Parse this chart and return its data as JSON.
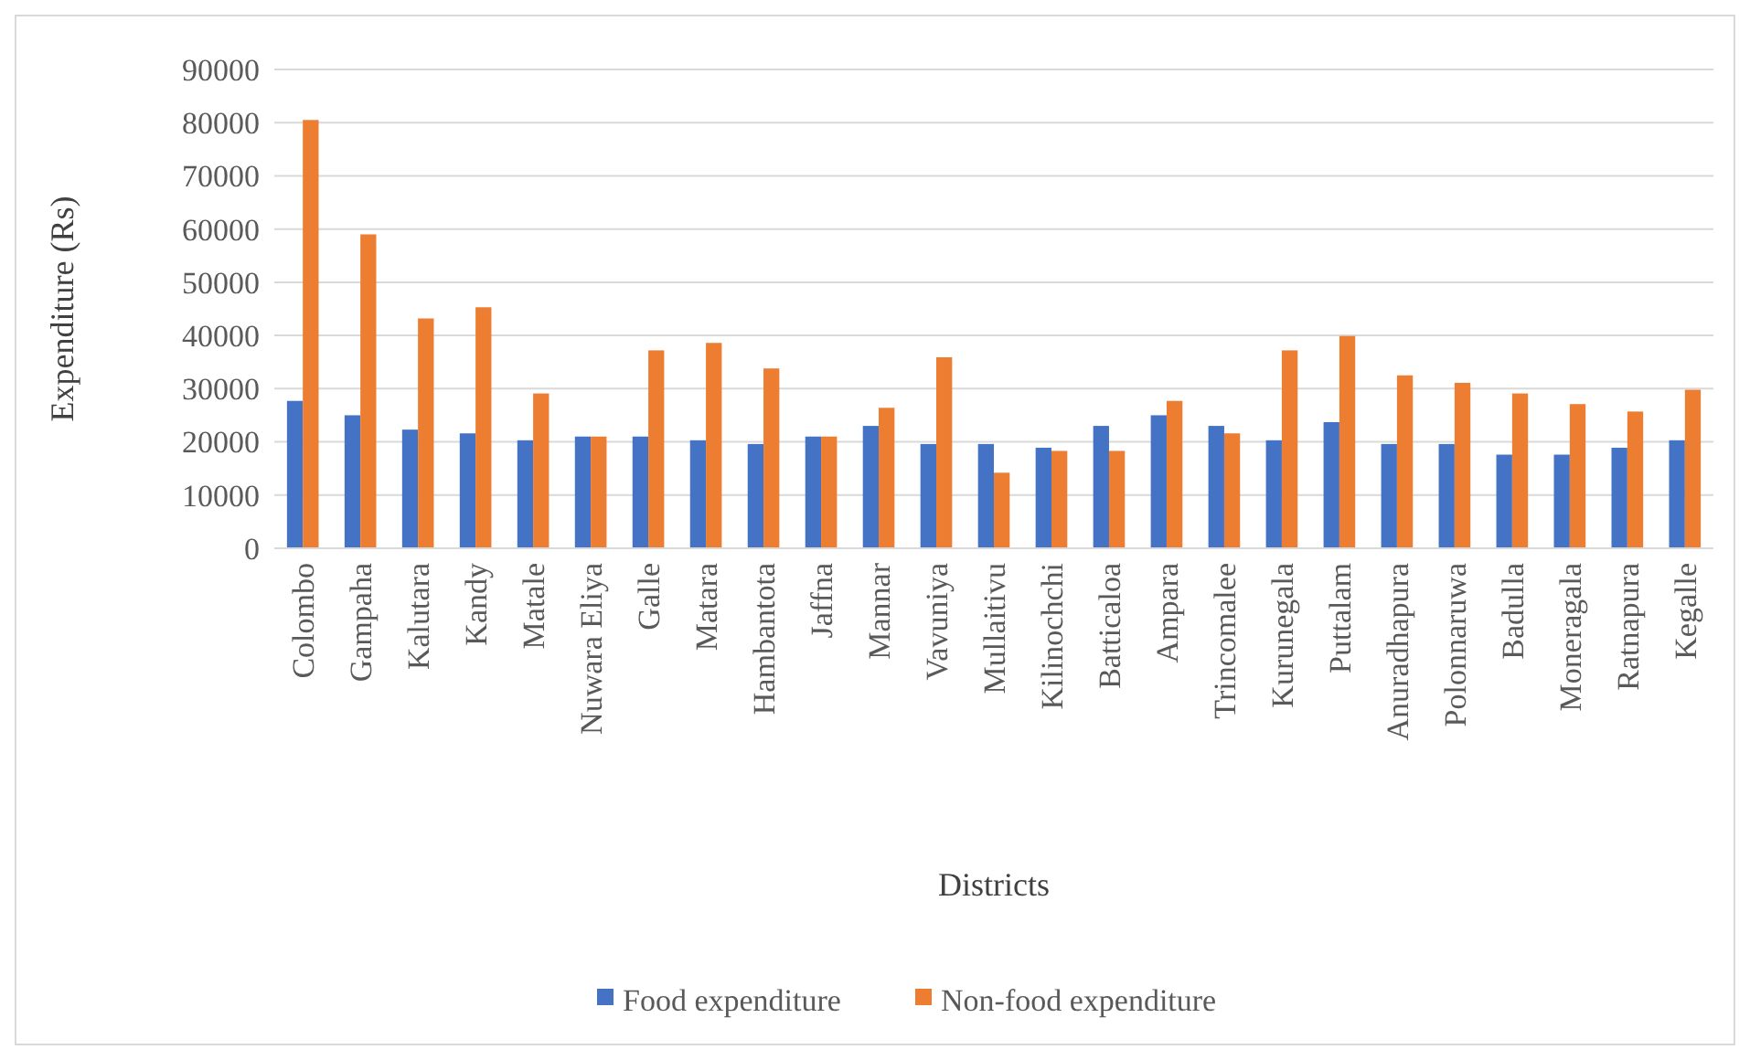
{
  "chart_data": {
    "type": "bar",
    "xlabel": "Districts",
    "ylabel": "Expenditure  (Rs)",
    "categories": [
      "Colombo",
      "Gampaha",
      "Kalutara",
      "Kandy",
      "Matale",
      "Nuwara Eliya",
      "Galle",
      "Matara",
      "Hambantota",
      "Jaffna",
      "Mannar",
      "Vavuniya",
      "Mullaitivu",
      "Kilinochchi",
      "Batticaloa",
      "Ampara",
      "Trincomalee",
      "Kurunegala",
      "Puttalam",
      "Anuradhapura",
      "Polonnaruwa",
      "Badulla",
      "Moneragala",
      "Ratnapura",
      "Kegalle"
    ],
    "series": [
      {
        "name": "Food expenditure",
        "color": "#4472c4",
        "values": [
          27700,
          25000,
          22300,
          21600,
          20300,
          21000,
          21000,
          20300,
          19600,
          21000,
          23000,
          19600,
          19600,
          18900,
          23000,
          25000,
          23000,
          20300,
          23700,
          19600,
          19600,
          17600,
          17600,
          18900,
          20300
        ]
      },
      {
        "name": "Non-food expenditure",
        "color": "#ed7d31",
        "values": [
          80500,
          59000,
          43200,
          45300,
          29100,
          21000,
          37200,
          38600,
          33800,
          21000,
          26400,
          35900,
          14200,
          18300,
          18300,
          27700,
          21600,
          37200,
          39900,
          32500,
          31100,
          29100,
          27100,
          25700,
          29800
        ]
      }
    ],
    "ylim": [
      0,
      90000
    ],
    "yticks": [
      0,
      10000,
      20000,
      30000,
      40000,
      50000,
      60000,
      70000,
      80000,
      90000
    ],
    "grid": "y",
    "legend": "bottom"
  }
}
